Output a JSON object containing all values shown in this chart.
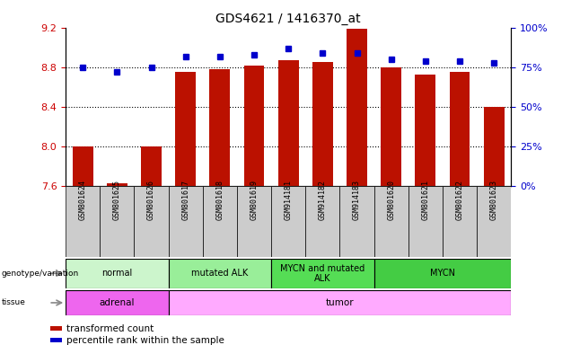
{
  "title": "GDS4621 / 1416370_at",
  "samples": [
    "GSM801624",
    "GSM801625",
    "GSM801626",
    "GSM801617",
    "GSM801618",
    "GSM801619",
    "GSM914181",
    "GSM914182",
    "GSM914183",
    "GSM801620",
    "GSM801621",
    "GSM801622",
    "GSM801623"
  ],
  "red_values": [
    8.0,
    7.63,
    8.0,
    8.75,
    8.78,
    8.82,
    8.87,
    8.85,
    9.19,
    8.8,
    8.73,
    8.75,
    8.4
  ],
  "blue_values": [
    75,
    72,
    75,
    82,
    82,
    83,
    87,
    84,
    84,
    80,
    79,
    79,
    78
  ],
  "ylim_left": [
    7.6,
    9.2
  ],
  "ylim_right": [
    0,
    100
  ],
  "yticks_left": [
    7.6,
    8.0,
    8.4,
    8.8,
    9.2
  ],
  "yticks_right": [
    0,
    25,
    50,
    75,
    100
  ],
  "ytick_labels_right": [
    "0%",
    "25%",
    "50%",
    "75%",
    "100%"
  ],
  "hlines": [
    8.0,
    8.4,
    8.8
  ],
  "groups": [
    {
      "label": "normal",
      "start": 0,
      "end": 3,
      "color": "#ccf5cc"
    },
    {
      "label": "mutated ALK",
      "start": 3,
      "end": 6,
      "color": "#99ee99"
    },
    {
      "label": "MYCN and mutated\nALK",
      "start": 6,
      "end": 9,
      "color": "#55dd55"
    },
    {
      "label": "MYCN",
      "start": 9,
      "end": 13,
      "color": "#44cc44"
    }
  ],
  "tissue_groups": [
    {
      "label": "adrenal",
      "start": 0,
      "end": 3,
      "color": "#ee66ee"
    },
    {
      "label": "tumor",
      "start": 3,
      "end": 13,
      "color": "#ffaaff"
    }
  ],
  "bar_color": "#bb1100",
  "dot_color": "#0000cc",
  "bar_width": 0.6,
  "left_axis_color": "#cc0000",
  "right_axis_color": "#0000cc",
  "label_bg_color": "#cccccc",
  "genotype_arrow_color": "#888888",
  "tissue_arrow_color": "#888888"
}
